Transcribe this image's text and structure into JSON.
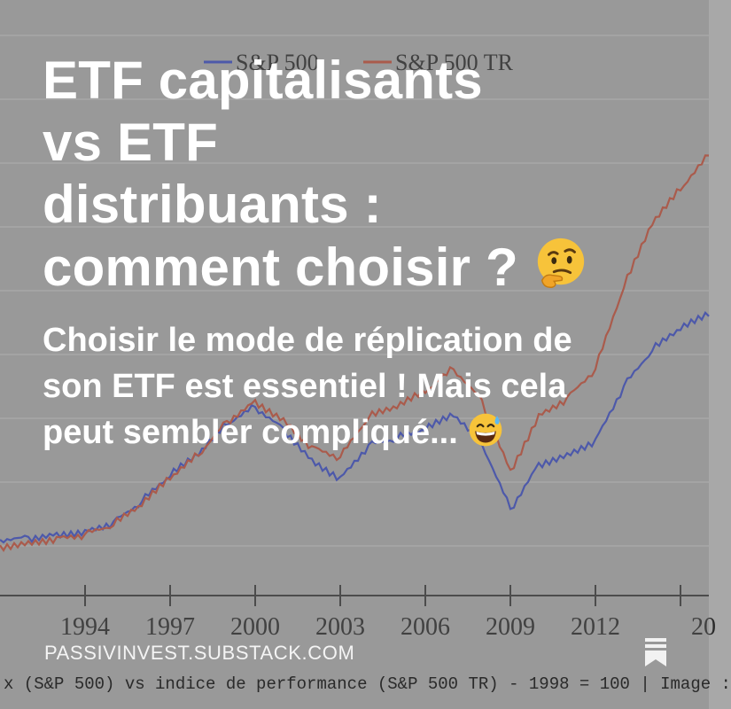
{
  "post": {
    "title_lines": [
      "ETF capitalisants",
      "vs ETF",
      "distribuants :",
      "comment choisir ?"
    ],
    "title_emoji": "thinking-face",
    "subtitle_lines": [
      "Choisir le mode de réplication de",
      "son ETF est essentiel ! Mais cela",
      "peut sembler compliqué..."
    ],
    "subtitle_emoji": "grinning-face-with-sweat",
    "site": "PASSIVINVEST.SUBSTACK.COM",
    "bookmark_icon": "bookmark-icon"
  },
  "background_caption": "x (S&P 500) vs indice de performance (S&P 500 TR) - 1998 = 100 | Image :",
  "colors": {
    "sp500": "#3b4cc0",
    "sp500tr": "#c0503a",
    "text": "#ffffff"
  },
  "chart_data": {
    "type": "line",
    "x": [
      1991,
      1992,
      1993,
      1994,
      1995,
      1996,
      1997,
      1998,
      1999,
      2000,
      2001,
      2002,
      2003,
      2004,
      2005,
      2006,
      2007,
      2008,
      2009,
      2010,
      2011,
      2012,
      2013,
      2014,
      2015,
      2016
    ],
    "series": [
      {
        "name": "S&P 500",
        "values": [
          40,
          42,
          45,
          47,
          53,
          67,
          85,
          100,
          122,
          135,
          120,
          98,
          85,
          108,
          112,
          118,
          128,
          108,
          62,
          95,
          102,
          112,
          150,
          175,
          190,
          200
        ]
      },
      {
        "name": "S&P 500 TR",
        "values": [
          36,
          39,
          42,
          44,
          50,
          64,
          83,
          100,
          125,
          140,
          127,
          107,
          99,
          127,
          134,
          145,
          162,
          140,
          90,
          130,
          142,
          162,
          220,
          265,
          290,
          315
        ]
      }
    ],
    "xticks": [
      "1994",
      "1997",
      "2000",
      "2003",
      "2006",
      "2009",
      "2012",
      "20"
    ],
    "xlim": [
      1991,
      2016
    ],
    "ylim": [
      0,
      420
    ],
    "grid": true,
    "legend": "top"
  }
}
